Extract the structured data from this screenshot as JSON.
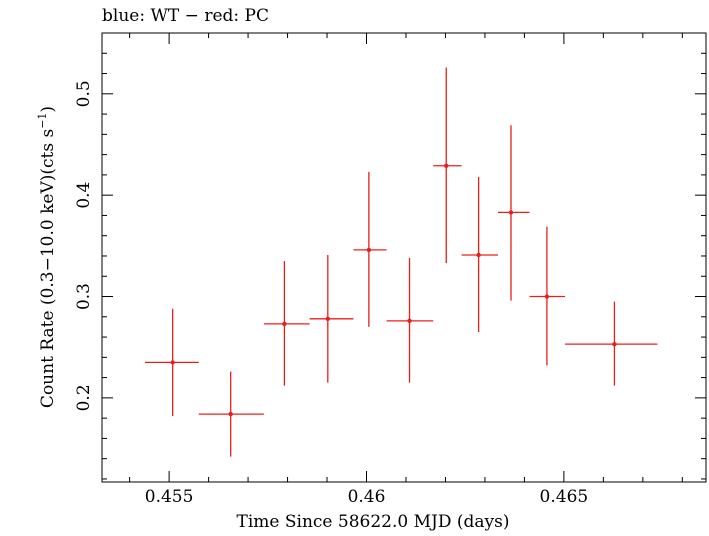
{
  "chart_data": {
    "type": "scatter",
    "title": "blue: WT − red: PC",
    "xlabel": "Time Since 58622.0 MJD (days)",
    "ylabel_main": "Count Rate (0.3−10.0 keV)(cts s",
    "ylabel_sup": "−1",
    "ylabel_end": ")",
    "xlim": [
      0.4533,
      0.4686
    ],
    "ylim": [
      0.117,
      0.56
    ],
    "x_ticks_major": [
      {
        "value": 0.455,
        "label": "0.455"
      },
      {
        "value": 0.46,
        "label": "0.46"
      },
      {
        "value": 0.465,
        "label": "0.465"
      }
    ],
    "x_ticks_minor": [
      0.454,
      0.456,
      0.457,
      0.458,
      0.459,
      0.461,
      0.462,
      0.463,
      0.464,
      0.466,
      0.467,
      0.468
    ],
    "y_ticks_major": [
      {
        "value": 0.2,
        "label": "0.2"
      },
      {
        "value": 0.3,
        "label": "0.3"
      },
      {
        "value": 0.4,
        "label": "0.4"
      },
      {
        "value": 0.5,
        "label": "0.5"
      }
    ],
    "y_ticks_minor": [
      0.12,
      0.14,
      0.16,
      0.18,
      0.22,
      0.24,
      0.26,
      0.28,
      0.32,
      0.34,
      0.36,
      0.38,
      0.42,
      0.44,
      0.46,
      0.48,
      0.52,
      0.54
    ],
    "series": [
      {
        "color": "#e8201c",
        "points": [
          {
            "x": 0.45509,
            "xlo": 0.45439,
            "xhi": 0.45575,
            "y": 0.235,
            "ylo": 0.182,
            "yhi": 0.288
          },
          {
            "x": 0.45656,
            "xlo": 0.45575,
            "xhi": 0.4574,
            "y": 0.184,
            "ylo": 0.142,
            "yhi": 0.226
          },
          {
            "x": 0.45792,
            "xlo": 0.4574,
            "xhi": 0.45856,
            "y": 0.273,
            "ylo": 0.212,
            "yhi": 0.335
          },
          {
            "x": 0.45902,
            "xlo": 0.45856,
            "xhi": 0.45967,
            "y": 0.278,
            "ylo": 0.215,
            "yhi": 0.341
          },
          {
            "x": 0.46006,
            "xlo": 0.45967,
            "xhi": 0.46051,
            "y": 0.346,
            "ylo": 0.27,
            "yhi": 0.423
          },
          {
            "x": 0.46109,
            "xlo": 0.46051,
            "xhi": 0.46169,
            "y": 0.276,
            "ylo": 0.215,
            "yhi": 0.338
          },
          {
            "x": 0.46202,
            "xlo": 0.46169,
            "xhi": 0.46241,
            "y": 0.429,
            "ylo": 0.333,
            "yhi": 0.526
          },
          {
            "x": 0.46284,
            "xlo": 0.46241,
            "xhi": 0.46333,
            "y": 0.341,
            "ylo": 0.265,
            "yhi": 0.418
          },
          {
            "x": 0.46366,
            "xlo": 0.46333,
            "xhi": 0.46413,
            "y": 0.383,
            "ylo": 0.296,
            "yhi": 0.469
          },
          {
            "x": 0.46457,
            "xlo": 0.46413,
            "xhi": 0.46503,
            "y": 0.3,
            "ylo": 0.232,
            "yhi": 0.369
          },
          {
            "x": 0.46628,
            "xlo": 0.46503,
            "xhi": 0.46737,
            "y": 0.253,
            "ylo": 0.212,
            "yhi": 0.295
          }
        ]
      }
    ]
  }
}
